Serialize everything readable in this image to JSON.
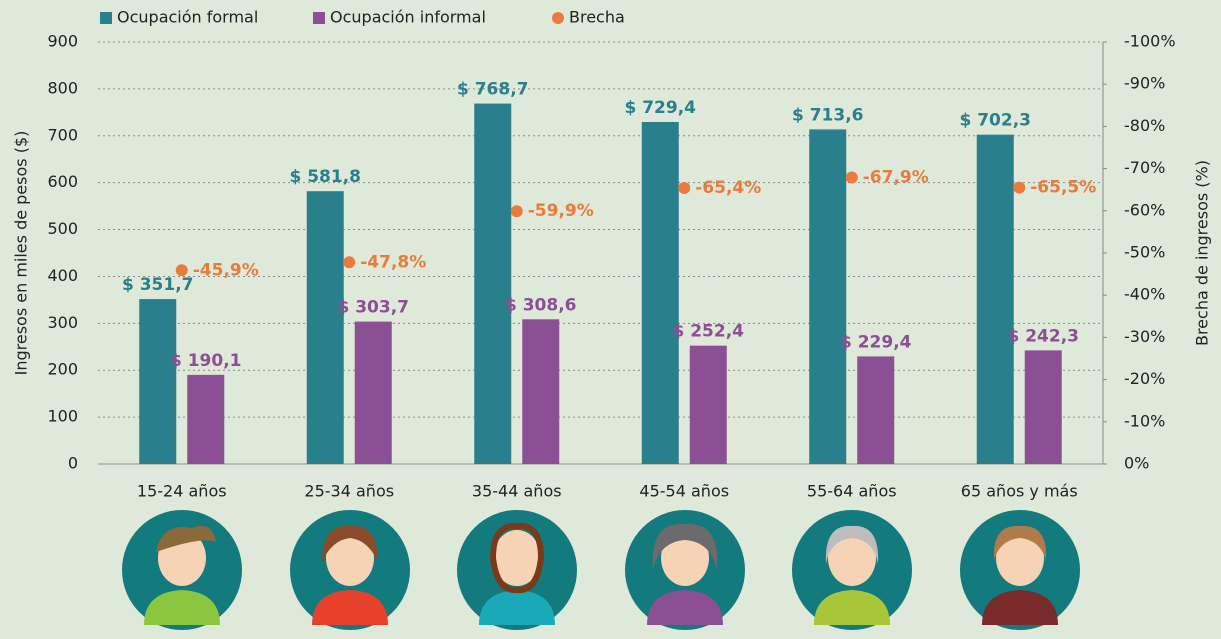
{
  "chart_data": {
    "type": "bar",
    "y_label": "Ingresos en miles de pesos ($)",
    "y2_label": "Brecha de ingresos (%)",
    "categories": [
      "15-24 años",
      "25-34 años",
      "35-44 años",
      "45-54 años",
      "55-64 años",
      "65 años y más"
    ],
    "series": [
      {
        "name": "Ocupación formal",
        "type": "bar",
        "color": "#2a7f8c",
        "values": [
          351.7,
          581.8,
          768.7,
          729.4,
          713.6,
          702.3
        ],
        "value_labels": [
          "$ 351,7",
          "$ 581,8",
          "$ 768,7",
          "$ 729,4",
          "$ 713,6",
          "$ 702,3"
        ]
      },
      {
        "name": "Ocupación informal",
        "type": "bar",
        "color": "#8b4f93",
        "values": [
          190.1,
          303.7,
          308.6,
          252.4,
          229.4,
          242.3
        ],
        "value_labels": [
          "$ 190,1",
          "$ 303,7",
          "$ 308,6",
          "$ 252,4",
          "$ 229,4",
          "$ 242,3"
        ]
      },
      {
        "name": "Brecha",
        "type": "scatter",
        "axis": "y2",
        "color": "#ea7b3c",
        "values": [
          -45.9,
          -47.8,
          -59.9,
          -65.4,
          -67.9,
          -65.5
        ],
        "value_labels": [
          "-45,9%",
          "-47,8%",
          "-59,9%",
          "-65,4%",
          "-67,9%",
          "-65,5%"
        ]
      }
    ],
    "ylim": [
      0,
      900
    ],
    "yticks": [
      0,
      100,
      200,
      300,
      400,
      500,
      600,
      700,
      800,
      900
    ],
    "y2lim": [
      0,
      -100
    ],
    "y2ticks": [
      {
        "value": 0,
        "label": "0%"
      },
      {
        "value": -10,
        "label": "-10%"
      },
      {
        "value": -20,
        "label": "-20%"
      },
      {
        "value": -30,
        "label": "-30%"
      },
      {
        "value": -40,
        "label": "-40%"
      },
      {
        "value": -50,
        "label": "-50%"
      },
      {
        "value": -60,
        "label": "-60%"
      },
      {
        "value": -70,
        "label": "-70%"
      },
      {
        "value": -80,
        "label": "-80%"
      },
      {
        "value": -90,
        "label": "-90%"
      },
      {
        "value": -100,
        "label": "-100%"
      }
    ],
    "grid": true
  }
}
